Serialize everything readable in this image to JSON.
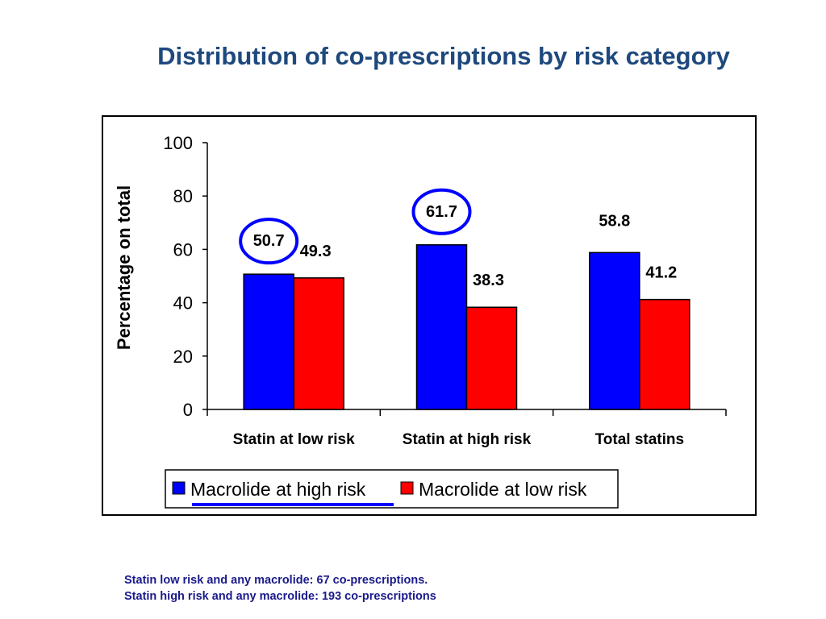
{
  "slide": {
    "title": "Distribution of co-prescriptions by risk category",
    "footnotes": [
      "Statin low risk and any macrolide: 67 co-prescriptions.",
      "Statin high risk and any macrolide: 193 co-prescriptions"
    ]
  },
  "chart_data": {
    "type": "bar",
    "categories": [
      "Statin at low risk",
      "Statin at high risk",
      "Total statins"
    ],
    "series": [
      {
        "name": "Macrolide at high risk",
        "values": [
          50.7,
          61.7,
          58.8
        ],
        "color": "#0000ff"
      },
      {
        "name": "Macrolide at low risk",
        "values": [
          49.3,
          38.3,
          41.2
        ],
        "color": "#ff0000"
      }
    ],
    "data_labels": [
      [
        "50.7",
        "61.7",
        "58.8"
      ],
      [
        "49.3",
        "38.3",
        "41.2"
      ]
    ],
    "circled_labels": [
      "50.7",
      "61.7"
    ],
    "ylabel": "Percentage on total",
    "ylim": [
      0,
      100
    ],
    "yticks": [
      0,
      20,
      40,
      60,
      80,
      100
    ],
    "grid": false,
    "legend_position": "bottom",
    "highlight_color": "#0000ff"
  }
}
